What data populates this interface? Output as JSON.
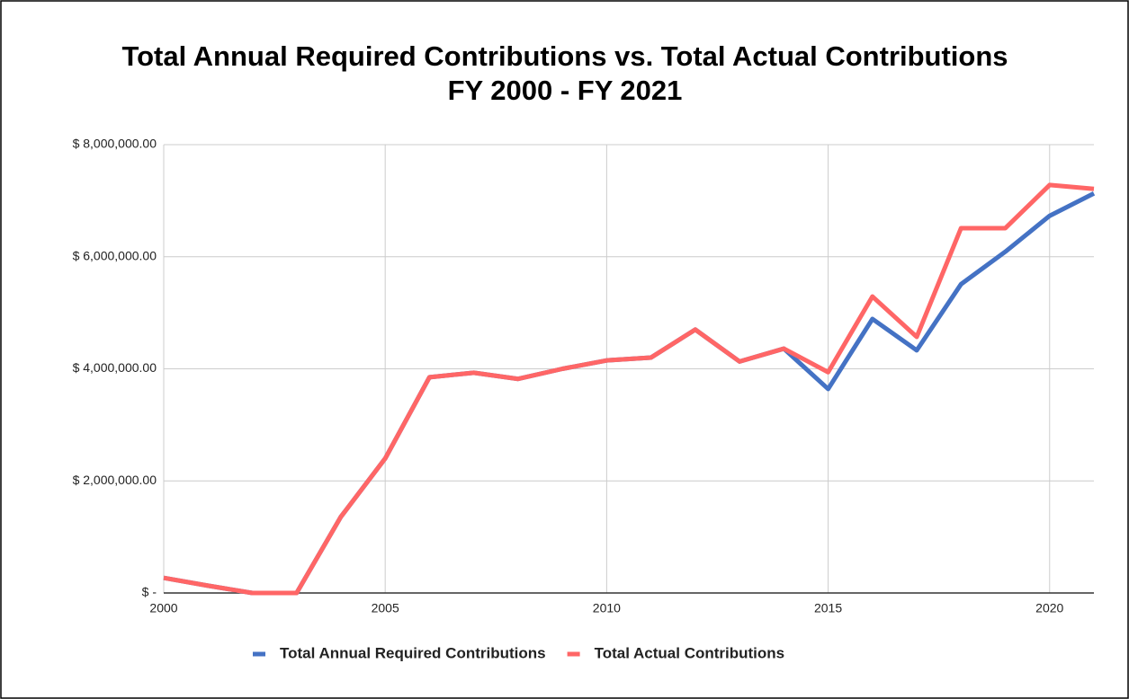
{
  "chart_data": {
    "type": "line",
    "title": "Total Annual Required Contributions vs. Total Actual Contributions",
    "subtitle": "FY 2000 - FY 2021",
    "x": [
      2000,
      2001,
      2002,
      2003,
      2004,
      2005,
      2006,
      2007,
      2008,
      2009,
      2010,
      2011,
      2012,
      2013,
      2014,
      2015,
      2016,
      2017,
      2018,
      2019,
      2020,
      2021
    ],
    "series": [
      {
        "name": "Total Annual Required Contributions",
        "color": "#4472c4",
        "values": [
          270000,
          130000,
          0,
          0,
          1360000,
          2400000,
          3850000,
          3930000,
          3820000,
          4000000,
          4150000,
          4200000,
          4700000,
          4130000,
          4360000,
          3640000,
          4890000,
          4330000,
          5510000,
          6090000,
          6730000,
          7130000
        ]
      },
      {
        "name": "Total Actual Contributions",
        "color": "#ff6666",
        "values": [
          270000,
          130000,
          0,
          0,
          1360000,
          2400000,
          3850000,
          3930000,
          3820000,
          4000000,
          4150000,
          4200000,
          4700000,
          4130000,
          4360000,
          3940000,
          5290000,
          4570000,
          6510000,
          6510000,
          7280000,
          7210000
        ]
      }
    ],
    "xlim": [
      2000,
      2021
    ],
    "xticks": [
      2000,
      2005,
      2010,
      2015,
      2020
    ],
    "ylim": [
      0,
      8000000
    ],
    "yticks": [
      {
        "value": 0,
        "label": "$ -"
      },
      {
        "value": 2000000,
        "label": "$ 2,000,000.00"
      },
      {
        "value": 4000000,
        "label": "$ 4,000,000.00"
      },
      {
        "value": 6000000,
        "label": "$ 6,000,000.00"
      },
      {
        "value": 8000000,
        "label": "$ 8,000,000.00"
      }
    ],
    "grid": true,
    "legend": "bottom"
  }
}
